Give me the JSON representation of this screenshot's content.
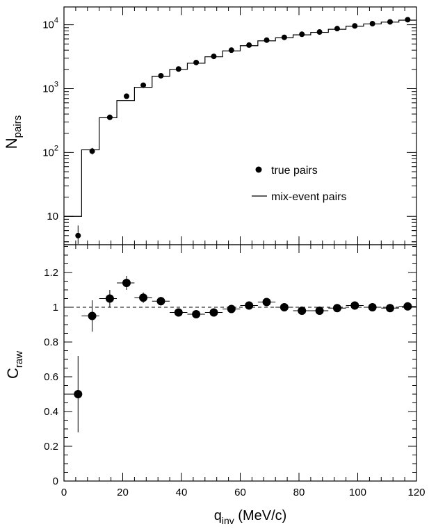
{
  "chart_data": [
    {
      "type": "scatter",
      "panel": "top",
      "scale": "log",
      "ylabel_main": "N",
      "ylabel_sub": "pairs",
      "ylim": [
        3.6,
        19000
      ],
      "xlim": [
        0,
        120
      ],
      "yticks_major": [
        {
          "value": 10,
          "label": "10",
          "exp": ""
        },
        {
          "value": 100,
          "label": "10",
          "exp": "2"
        },
        {
          "value": 1000,
          "label": "10",
          "exp": "3"
        },
        {
          "value": 10000,
          "label": "10",
          "exp": "4"
        }
      ],
      "legend": {
        "placement": "center-right",
        "points_label": "true pairs",
        "hist_label": "mix-event pairs"
      },
      "series": [
        {
          "name": "true pairs",
          "style": "points",
          "x": [
            4.8,
            9.6,
            15.6,
            21.3,
            27.0,
            33.0,
            39.0,
            45.0,
            51.0,
            57.0,
            63.0,
            69.0,
            75.0,
            81.0,
            87.0,
            93.0,
            99.0,
            105.0,
            111.0,
            117.0
          ],
          "y": [
            5,
            105,
            355,
            760,
            1130,
            1590,
            2030,
            2560,
            3200,
            4000,
            4800,
            5750,
            6350,
            7100,
            7700,
            8700,
            9600,
            10400,
            11100,
            12000
          ],
          "yerr_lo": [
            3.7,
            93,
            330,
            720,
            1090,
            1540,
            1980,
            2510,
            3150,
            3950,
            4750,
            5700,
            6300,
            7050,
            7650,
            8650,
            9550,
            10350,
            11050,
            11950
          ],
          "yerr_hi": [
            7.2,
            118,
            380,
            800,
            1170,
            1640,
            2080,
            2610,
            3250,
            4050,
            4850,
            5800,
            6400,
            7150,
            7750,
            8750,
            9650,
            10450,
            11150,
            12050
          ]
        },
        {
          "name": "mix-event pairs",
          "style": "step",
          "bin_edges": [
            0,
            6,
            12,
            18,
            24,
            30,
            36,
            42,
            48,
            54,
            60,
            66,
            72,
            78,
            84,
            90,
            96,
            102,
            108,
            114,
            120
          ],
          "values": [
            10,
            110,
            350,
            650,
            1050,
            1560,
            2000,
            2500,
            3150,
            3900,
            4700,
            5600,
            6250,
            6950,
            7600,
            8500,
            9500,
            10300,
            11000,
            11800
          ]
        }
      ]
    },
    {
      "type": "scatter",
      "panel": "bottom",
      "ylabel_main": "C",
      "ylabel_sub": "raw",
      "xlabel_main": "q",
      "xlabel_sub": "inv",
      "xlabel_rest": " (MeV/c)",
      "xlim": [
        0,
        120
      ],
      "ylim": [
        0,
        1.36
      ],
      "xticks": [
        "0",
        "20",
        "40",
        "60",
        "80",
        "100",
        "120"
      ],
      "yticks": [
        "0",
        "0.2",
        "0.4",
        "0.6",
        "0.8",
        "1",
        "1.2"
      ],
      "reference_line": 1,
      "series": [
        {
          "name": "C_raw",
          "x": [
            4.8,
            9.6,
            15.6,
            21.3,
            27.0,
            33.0,
            39.0,
            45.0,
            51.0,
            57.0,
            63.0,
            69.0,
            75.0,
            81.0,
            87.0,
            93.0,
            99.0,
            105.0,
            111.0,
            117.0
          ],
          "y": [
            0.5,
            0.95,
            1.05,
            1.14,
            1.055,
            1.035,
            0.97,
            0.96,
            0.97,
            0.99,
            1.01,
            1.03,
            1.0,
            0.98,
            0.98,
            0.995,
            1.01,
            1.0,
            0.995,
            1.005
          ],
          "yerr": [
            0.22,
            0.09,
            0.05,
            0.04,
            0.03,
            0.025,
            0.02,
            0.02,
            0.02,
            0.02,
            0.015,
            0.015,
            0.015,
            0.015,
            0.015,
            0.015,
            0.015,
            0.015,
            0.015,
            0.015
          ]
        }
      ]
    }
  ]
}
